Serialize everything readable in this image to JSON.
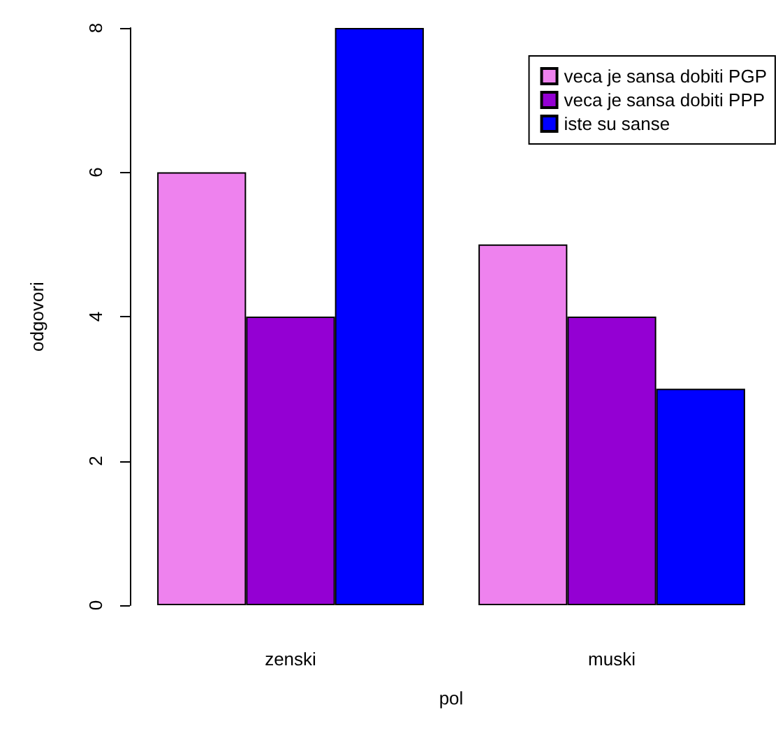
{
  "chart_data": {
    "type": "bar",
    "xlabel": "pol",
    "ylabel": "odgovori",
    "categories": [
      "zenski",
      "muski"
    ],
    "series": [
      {
        "name": "veca je sansa dobiti PGP",
        "color": "#ee82ee",
        "values": [
          6,
          5
        ]
      },
      {
        "name": "veca je sansa dobiti PPP",
        "color": "#9400d3",
        "values": [
          4,
          4
        ]
      },
      {
        "name": "iste su sanse",
        "color": "#0000ff",
        "values": [
          8,
          3
        ]
      }
    ],
    "ylim": [
      0,
      8
    ],
    "yticks": [
      0,
      2,
      4,
      6,
      8
    ],
    "grid": false,
    "legend": "top right"
  }
}
